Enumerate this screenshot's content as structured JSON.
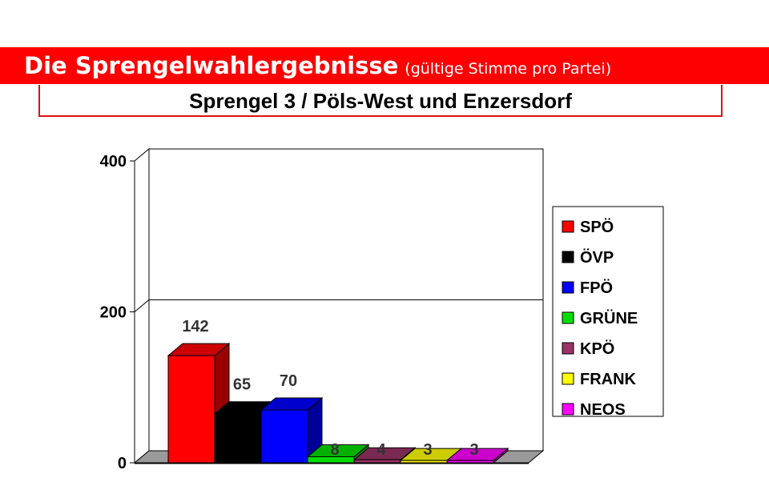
{
  "header": {
    "title": "Die Sprengelwahlergebnisse",
    "subtitle": "(gültige Stimme pro Partei)",
    "chart_heading": "Sprengel 3 / Pöls-West und Enzersdorf"
  },
  "chart_data": {
    "type": "bar",
    "title": "Sprengel 3 / Pöls-West und Enzersdorf",
    "xlabel": "",
    "ylabel": "",
    "ylim": [
      0,
      400
    ],
    "yticks": [
      "0",
      "200",
      "400"
    ],
    "grid": true,
    "legend_position": "right",
    "categories": [
      "SPÖ",
      "ÖVP",
      "FPÖ",
      "GRÜNE",
      "KPÖ",
      "FRANK",
      "NEOS"
    ],
    "values": [
      142,
      65,
      70,
      8,
      4,
      3,
      3
    ],
    "data_labels": [
      "142",
      "65",
      "70",
      "8",
      "4",
      "3",
      "3"
    ],
    "colors": [
      "#ff0000",
      "#000000",
      "#0000ff",
      "#00dd00",
      "#993366",
      "#ffff00",
      "#ff00ff"
    ]
  }
}
